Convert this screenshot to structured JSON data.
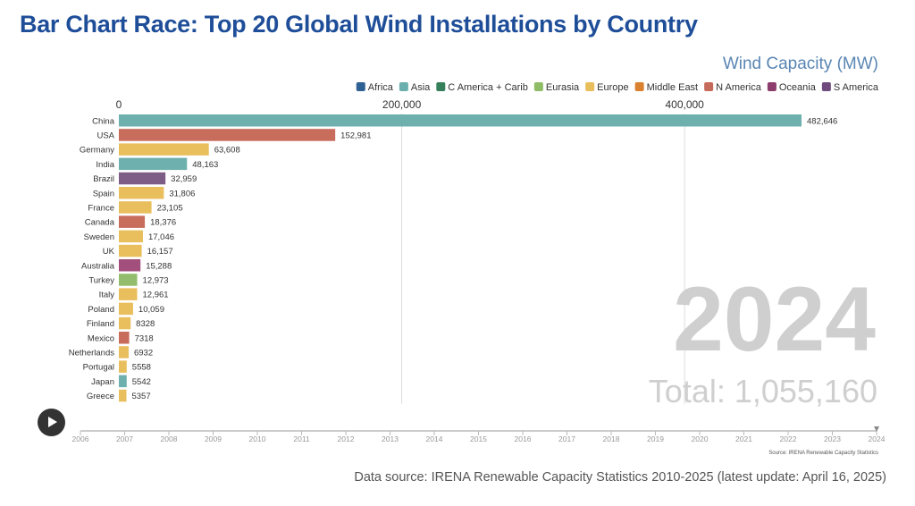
{
  "title": "Bar Chart Race: Top 20 Global Wind Installations by Country",
  "footer_source": "Data source: IRENA Renewable Capacity Statistics 2010-2025 (latest update: April 16, 2025)",
  "controls": {
    "play_icon": "play-icon"
  },
  "chart_data": {
    "type": "bar",
    "orientation": "horizontal",
    "title": "Wind Capacity (MW)",
    "xlim": [
      0,
      482646
    ],
    "x_ticks": [
      0,
      200000,
      400000
    ],
    "x_tick_labels": [
      "0",
      "200,000",
      "400,000"
    ],
    "grid": true,
    "legend_placement": "top-right",
    "legend": [
      {
        "name": "Africa",
        "color": "#2f6294"
      },
      {
        "name": "Asia",
        "color": "#6aafad"
      },
      {
        "name": "C America + Carib",
        "color": "#35805a"
      },
      {
        "name": "Eurasia",
        "color": "#8fbc67"
      },
      {
        "name": "Europe",
        "color": "#e8bd5c"
      },
      {
        "name": "Middle East",
        "color": "#d9812f"
      },
      {
        "name": "N America",
        "color": "#c66a5b"
      },
      {
        "name": "Oceania",
        "color": "#8d3c6e"
      },
      {
        "name": "S America",
        "color": "#6e4a7d"
      }
    ],
    "categories": [
      "China",
      "USA",
      "Germany",
      "India",
      "Brazil",
      "Spain",
      "France",
      "Canada",
      "Sweden",
      "UK",
      "Australia",
      "Turkey",
      "Italy",
      "Poland",
      "Finland",
      "Mexico",
      "Netherlands",
      "Portugal",
      "Japan",
      "Greece"
    ],
    "values": [
      482646,
      152981,
      63608,
      48163,
      32959,
      31806,
      23105,
      18376,
      17046,
      16157,
      15288,
      12973,
      12961,
      10059,
      8328,
      7318,
      6932,
      5558,
      5542,
      5357
    ],
    "value_labels": [
      "482,646",
      "152,981",
      "63,608",
      "48,163",
      "32,959",
      "31,806",
      "23,105",
      "18,376",
      "17,046",
      "16,157",
      "15,288",
      "12,973",
      "12,961",
      "10,059",
      "8328",
      "7318",
      "6932",
      "5558",
      "5542",
      "5357"
    ],
    "regions": [
      "Asia",
      "N America",
      "Europe",
      "Asia",
      "S America",
      "Europe",
      "Europe",
      "N America",
      "Europe",
      "Europe",
      "Oceania",
      "Eurasia",
      "Europe",
      "Europe",
      "Europe",
      "N America",
      "Europe",
      "Europe",
      "Asia",
      "Europe"
    ],
    "bar_colors": {
      "Asia": "#6eb0ae",
      "N America": "#c86c5c",
      "Europe": "#e9bf5e",
      "S America": "#7d5c86",
      "Oceania": "#a24f7e",
      "Eurasia": "#93bd6c"
    },
    "current_year": "2024",
    "total_label": "Total: 1,055,160",
    "timeline_years": [
      "2006",
      "2007",
      "2008",
      "2009",
      "2010",
      "2011",
      "2012",
      "2013",
      "2014",
      "2015",
      "2016",
      "2017",
      "2018",
      "2019",
      "2020",
      "2021",
      "2022",
      "2023",
      "2024"
    ],
    "timeline_position": "2024",
    "chart_source_note": "Source: IRENA Renewable Capacity Statistics"
  }
}
